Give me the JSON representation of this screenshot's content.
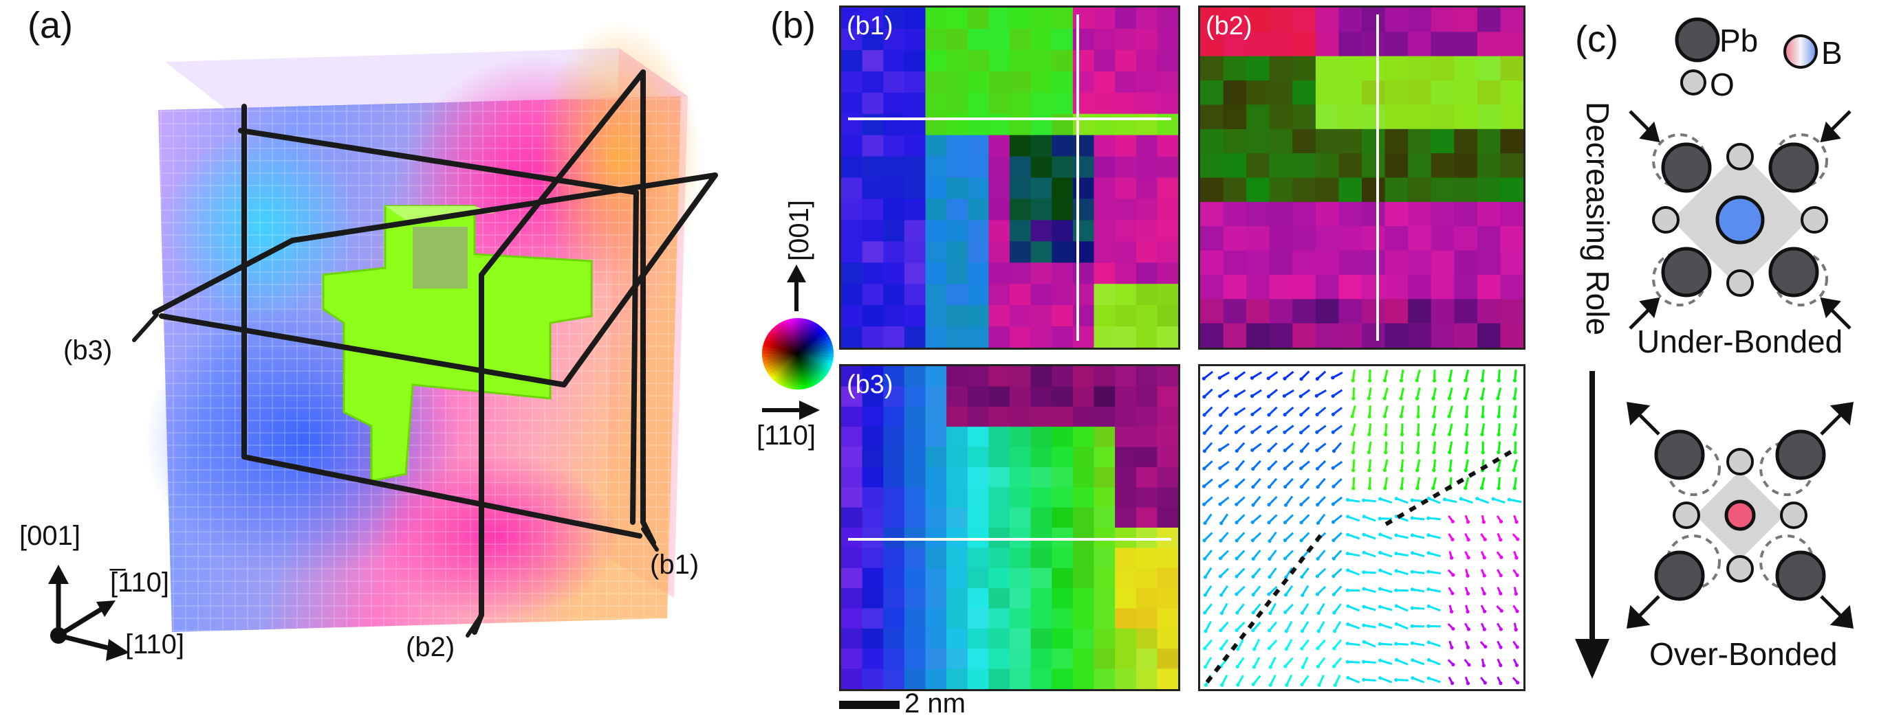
{
  "panel_a": {
    "label": "(a)",
    "plane_labels": {
      "b1": "(b1)",
      "b2": "(b2)",
      "b3": "(b3)"
    },
    "axes": {
      "z": "[001]",
      "y": "[̅110]",
      "x": "[110]"
    }
  },
  "panel_b": {
    "label": "(b)",
    "b1_label": "(b1)",
    "b2_label": "(b2)",
    "b3_label": "(b3)",
    "axis_up": "[001]",
    "axis_right": "[110]",
    "scale_bar": "2 nm",
    "colors": {
      "green": "#7cff00",
      "cyan": "#00e5ff",
      "blue": "#1530ff",
      "magenta": "#e020e0",
      "red": "#ff2060",
      "orange": "#ff9a20",
      "yellow": "#f5ff00"
    }
  },
  "panel_c": {
    "label": "(c)",
    "legend": {
      "pb": "Pb",
      "o": "O",
      "b": "B"
    },
    "arrow_label": "Decreasing Role",
    "under_bonded": "Under-Bonded",
    "over_bonded": "Over-Bonded",
    "colors": {
      "pb": "#4d4f55",
      "o": "#cfcfcf",
      "b_under": "#5b8df0",
      "b_over": "#f05a7a"
    }
  }
}
